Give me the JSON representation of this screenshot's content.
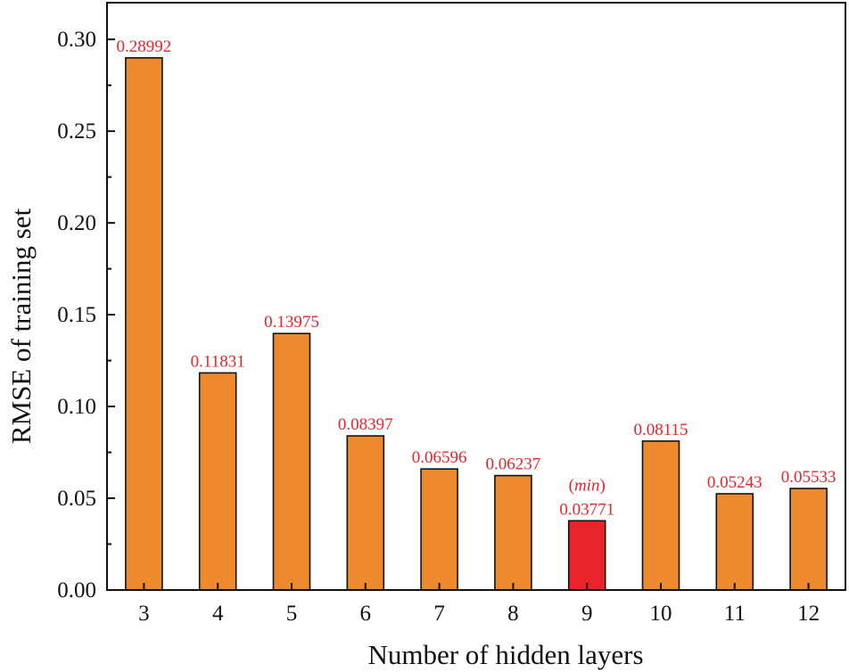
{
  "chart_data": {
    "type": "bar",
    "title": "",
    "xlabel": "Number of hidden layers",
    "ylabel": "RMSE of training set",
    "categories": [
      "3",
      "4",
      "5",
      "6",
      "7",
      "8",
      "9",
      "10",
      "11",
      "12"
    ],
    "values": [
      0.28992,
      0.11831,
      0.13975,
      0.08397,
      0.06596,
      0.06237,
      0.03771,
      0.08115,
      0.05243,
      0.05533
    ],
    "data_labels": [
      "0.28992",
      "0.11831",
      "0.13975",
      "0.08397",
      "0.06596",
      "0.06237",
      "0.03771",
      "0.08115",
      "0.05243",
      "0.05533"
    ],
    "highlight_index": 6,
    "highlight_annotation_open": "(",
    "highlight_annotation_word": "min",
    "highlight_annotation_close": ")",
    "ylim": [
      0,
      0.32
    ],
    "yticks": [
      0.0,
      0.05,
      0.1,
      0.15,
      0.2,
      0.25,
      0.3
    ],
    "ytick_labels": [
      "0.00",
      "0.05",
      "0.10",
      "0.15",
      "0.20",
      "0.25",
      "0.30"
    ],
    "grid": false,
    "legend": "none",
    "colors": {
      "bar": "#EE8A2E",
      "highlight_bar": "#E8232A",
      "label_text": "#E8232A",
      "axis": "#111111"
    }
  }
}
